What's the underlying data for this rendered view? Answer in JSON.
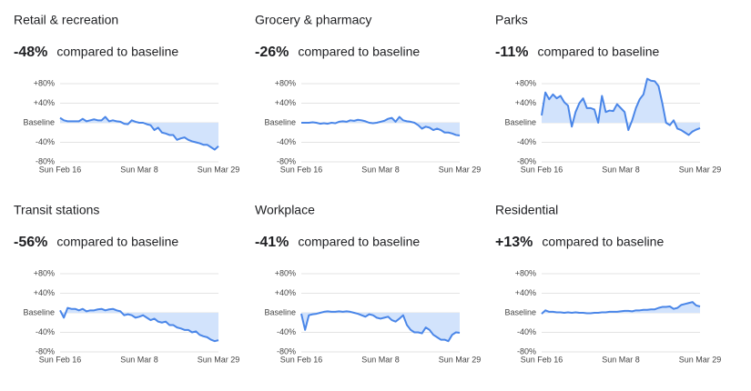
{
  "chart_data": [
    {
      "type": "line",
      "title": "Retail & recreation",
      "headline": "-48%",
      "subtitle": "compared to baseline",
      "categories": [
        "Sun Feb 16",
        null,
        null,
        null,
        null,
        null,
        null,
        null,
        null,
        null,
        null,
        null,
        null,
        null,
        null,
        null,
        null,
        null,
        null,
        null,
        null,
        "Sun Mar 8",
        null,
        null,
        null,
        null,
        null,
        null,
        null,
        null,
        null,
        null,
        null,
        null,
        null,
        null,
        null,
        null,
        null,
        null,
        null,
        null,
        "Sun Mar 29"
      ],
      "values": [
        10,
        5,
        3,
        3,
        3,
        3,
        8,
        3,
        5,
        7,
        5,
        5,
        12,
        3,
        5,
        3,
        2,
        -2,
        -3,
        5,
        2,
        0,
        0,
        -3,
        -5,
        -15,
        -10,
        -20,
        -22,
        -25,
        -25,
        -35,
        -32,
        -30,
        -35,
        -38,
        -40,
        -42,
        -45,
        -45,
        -50,
        -55,
        -48
      ],
      "color": "#4a86e8",
      "fill_color": "#d2e3fc",
      "ylim": [
        -80,
        80
      ],
      "yticks": [
        {
          "value": 80,
          "label": "+80%"
        },
        {
          "value": 40,
          "label": "+40%"
        },
        {
          "value": 0,
          "label": "Baseline"
        },
        {
          "value": -40,
          "label": "-40%"
        },
        {
          "value": -80,
          "label": "-80%"
        }
      ],
      "grid": true
    },
    {
      "type": "line",
      "title": "Grocery & pharmacy",
      "headline": "-26%",
      "subtitle": "compared to baseline",
      "categories": [
        "Sun Feb 16",
        null,
        null,
        null,
        null,
        null,
        null,
        null,
        null,
        null,
        null,
        null,
        null,
        null,
        null,
        null,
        null,
        null,
        null,
        null,
        null,
        "Sun Mar 8",
        null,
        null,
        null,
        null,
        null,
        null,
        null,
        null,
        null,
        null,
        null,
        null,
        null,
        null,
        null,
        null,
        null,
        null,
        null,
        null,
        "Sun Mar 29"
      ],
      "values": [
        0,
        0,
        0,
        1,
        0,
        -2,
        -1,
        -2,
        0,
        -1,
        2,
        3,
        2,
        5,
        4,
        6,
        5,
        3,
        0,
        -1,
        0,
        2,
        4,
        8,
        10,
        2,
        12,
        5,
        3,
        2,
        0,
        -5,
        -12,
        -8,
        -10,
        -15,
        -12,
        -15,
        -20,
        -20,
        -22,
        -25,
        -26
      ],
      "color": "#4a86e8",
      "fill_color": "#d2e3fc",
      "ylim": [
        -80,
        80
      ],
      "yticks": [
        {
          "value": 80,
          "label": "+80%"
        },
        {
          "value": 40,
          "label": "+40%"
        },
        {
          "value": 0,
          "label": "Baseline"
        },
        {
          "value": -40,
          "label": "-40%"
        },
        {
          "value": -80,
          "label": "-80%"
        }
      ],
      "grid": true
    },
    {
      "type": "line",
      "title": "Parks",
      "headline": "-11%",
      "subtitle": "compared to baseline",
      "categories": [
        "Sun Feb 16",
        null,
        null,
        null,
        null,
        null,
        null,
        null,
        null,
        null,
        null,
        null,
        null,
        null,
        null,
        null,
        null,
        null,
        null,
        null,
        null,
        "Sun Mar 8",
        null,
        null,
        null,
        null,
        null,
        null,
        null,
        null,
        null,
        null,
        null,
        null,
        null,
        null,
        null,
        null,
        null,
        null,
        null,
        null,
        "Sun Mar 29"
      ],
      "values": [
        15,
        62,
        48,
        58,
        50,
        55,
        42,
        35,
        -8,
        22,
        40,
        50,
        30,
        30,
        27,
        0,
        55,
        22,
        25,
        24,
        38,
        30,
        22,
        -15,
        5,
        30,
        48,
        58,
        90,
        86,
        85,
        75,
        40,
        0,
        -5,
        5,
        -12,
        -15,
        -20,
        -25,
        -18,
        -14,
        -11
      ],
      "color": "#4a86e8",
      "fill_color": "#d2e3fc",
      "ylim": [
        -80,
        80
      ],
      "yticks": [
        {
          "value": 80,
          "label": "+80%"
        },
        {
          "value": 40,
          "label": "+40%"
        },
        {
          "value": 0,
          "label": "Baseline"
        },
        {
          "value": -40,
          "label": "-40%"
        },
        {
          "value": -80,
          "label": "-80%"
        }
      ],
      "grid": true
    },
    {
      "type": "line",
      "title": "Transit stations",
      "headline": "-56%",
      "subtitle": "compared to baseline",
      "categories": [
        "Sun Feb 16",
        null,
        null,
        null,
        null,
        null,
        null,
        null,
        null,
        null,
        null,
        null,
        null,
        null,
        null,
        null,
        null,
        null,
        null,
        null,
        null,
        "Sun Mar 8",
        null,
        null,
        null,
        null,
        null,
        null,
        null,
        null,
        null,
        null,
        null,
        null,
        null,
        null,
        null,
        null,
        null,
        null,
        null,
        null,
        "Sun Mar 29"
      ],
      "values": [
        5,
        -10,
        10,
        8,
        8,
        5,
        8,
        3,
        5,
        5,
        7,
        8,
        5,
        7,
        8,
        5,
        3,
        -5,
        -3,
        -5,
        -10,
        -8,
        -5,
        -10,
        -15,
        -12,
        -18,
        -20,
        -18,
        -25,
        -25,
        -30,
        -32,
        -35,
        -35,
        -40,
        -38,
        -45,
        -48,
        -50,
        -55,
        -58,
        -56
      ],
      "color": "#4a86e8",
      "fill_color": "#d2e3fc",
      "ylim": [
        -80,
        80
      ],
      "yticks": [
        {
          "value": 80,
          "label": "+80%"
        },
        {
          "value": 40,
          "label": "+40%"
        },
        {
          "value": 0,
          "label": "Baseline"
        },
        {
          "value": -40,
          "label": "-40%"
        },
        {
          "value": -80,
          "label": "-80%"
        }
      ],
      "grid": true
    },
    {
      "type": "line",
      "title": "Workplace",
      "headline": "-41%",
      "subtitle": "compared to baseline",
      "categories": [
        "Sun Feb 16",
        null,
        null,
        null,
        null,
        null,
        null,
        null,
        null,
        null,
        null,
        null,
        null,
        null,
        null,
        null,
        null,
        null,
        null,
        null,
        null,
        "Sun Mar 8",
        null,
        null,
        null,
        null,
        null,
        null,
        null,
        null,
        null,
        null,
        null,
        null,
        null,
        null,
        null,
        null,
        null,
        null,
        null,
        null,
        "Sun Mar 29"
      ],
      "values": [
        -2,
        -35,
        -5,
        -3,
        -2,
        0,
        2,
        3,
        2,
        2,
        3,
        2,
        3,
        2,
        0,
        -2,
        -5,
        -8,
        -3,
        -5,
        -10,
        -12,
        -10,
        -8,
        -15,
        -18,
        -12,
        -5,
        -25,
        -35,
        -40,
        -40,
        -42,
        -30,
        -35,
        -45,
        -50,
        -55,
        -55,
        -58,
        -45,
        -40,
        -41
      ],
      "color": "#4a86e8",
      "fill_color": "#d2e3fc",
      "ylim": [
        -80,
        80
      ],
      "yticks": [
        {
          "value": 80,
          "label": "+80%"
        },
        {
          "value": 40,
          "label": "+40%"
        },
        {
          "value": 0,
          "label": "Baseline"
        },
        {
          "value": -40,
          "label": "-40%"
        },
        {
          "value": -80,
          "label": "-80%"
        }
      ],
      "grid": true
    },
    {
      "type": "line",
      "title": "Residential",
      "headline": "+13%",
      "subtitle": "compared to baseline",
      "categories": [
        "Sun Feb 16",
        null,
        null,
        null,
        null,
        null,
        null,
        null,
        null,
        null,
        null,
        null,
        null,
        null,
        null,
        null,
        null,
        null,
        null,
        null,
        null,
        "Sun Mar 8",
        null,
        null,
        null,
        null,
        null,
        null,
        null,
        null,
        null,
        null,
        null,
        null,
        null,
        null,
        null,
        null,
        null,
        null,
        null,
        null,
        "Sun Mar 29"
      ],
      "values": [
        -2,
        5,
        2,
        2,
        1,
        1,
        0,
        1,
        0,
        1,
        0,
        0,
        -1,
        -1,
        0,
        0,
        1,
        1,
        2,
        2,
        2,
        3,
        4,
        4,
        3,
        5,
        5,
        6,
        6,
        7,
        7,
        10,
        12,
        12,
        13,
        8,
        10,
        16,
        18,
        20,
        22,
        15,
        13
      ],
      "color": "#4a86e8",
      "fill_color": "#d2e3fc",
      "ylim": [
        -80,
        80
      ],
      "yticks": [
        {
          "value": 80,
          "label": "+80%"
        },
        {
          "value": 40,
          "label": "+40%"
        },
        {
          "value": 0,
          "label": "Baseline"
        },
        {
          "value": -40,
          "label": "-40%"
        },
        {
          "value": -80,
          "label": "-80%"
        }
      ],
      "grid": true
    }
  ]
}
